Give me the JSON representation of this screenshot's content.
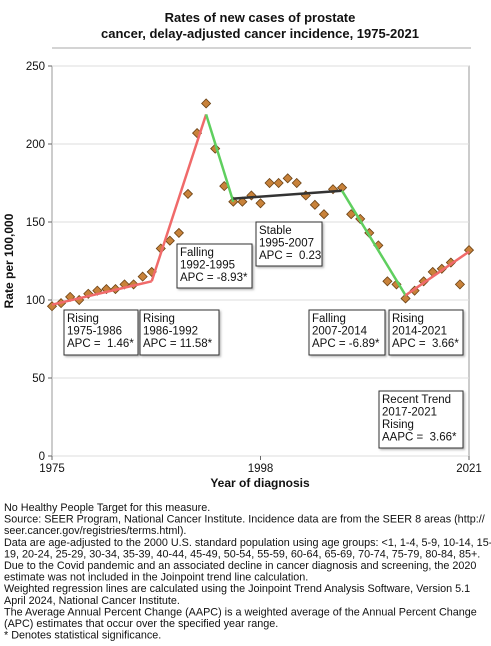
{
  "chart_data": {
    "type": "scatter",
    "title": [
      "Rates of new cases of prostate",
      "cancer, delay-adjusted cancer incidence, 1975-2021"
    ],
    "y_label": "Rate per 100,000",
    "x_label": "Year of diagnosis",
    "xlim": [
      1975,
      2021
    ],
    "xticks": [
      1975,
      1998,
      2021
    ],
    "ylim": [
      0,
      250
    ],
    "yticks": [
      0,
      50,
      100,
      150,
      200,
      250
    ],
    "marker_color": "#c8823a",
    "x": [
      1975,
      1976,
      1977,
      1978,
      1979,
      1980,
      1981,
      1982,
      1983,
      1984,
      1985,
      1986,
      1987,
      1988,
      1989,
      1990,
      1991,
      1992,
      1993,
      1994,
      1995,
      1996,
      1997,
      1998,
      1999,
      2000,
      2001,
      2002,
      2003,
      2004,
      2005,
      2006,
      2007,
      2008,
      2009,
      2010,
      2011,
      2012,
      2013,
      2014,
      2015,
      2016,
      2017,
      2018,
      2019,
      2020,
      2021
    ],
    "values": [
      96,
      98,
      102,
      100,
      104,
      106,
      107,
      107,
      110,
      110,
      115,
      118,
      133,
      138,
      143,
      168,
      207,
      226,
      197,
      173,
      163,
      163,
      167,
      162,
      175,
      175,
      178,
      175,
      167,
      161,
      155,
      171,
      172,
      155,
      152,
      143,
      135,
      112,
      110,
      101,
      106,
      112,
      118,
      120,
      124,
      110,
      132
    ],
    "trend_lines": [
      {
        "x": [
          1975,
          1986
        ],
        "values": [
          97,
          112
        ],
        "color": "#f06a6a"
      },
      {
        "x": [
          1986,
          1992
        ],
        "values": [
          112,
          219
        ],
        "color": "#f06a6a"
      },
      {
        "x": [
          1992,
          1995
        ],
        "values": [
          219,
          163
        ],
        "color": "#5fcf5f"
      },
      {
        "x": [
          1995,
          2007
        ],
        "values": [
          165,
          170
        ],
        "color": "#333333"
      },
      {
        "x": [
          2007,
          2014
        ],
        "values": [
          170,
          103
        ],
        "color": "#5fcf5f"
      },
      {
        "x": [
          2014,
          2021
        ],
        "values": [
          103,
          131
        ],
        "color": "#f06a6a"
      }
    ],
    "annotations": [
      {
        "lines": [
          "Rising",
          "1975-1986",
          "APC =  1.46*"
        ]
      },
      {
        "lines": [
          "Rising",
          "1986-1992",
          "APC = 11.58*"
        ]
      },
      {
        "lines": [
          "Falling",
          "1992-1995",
          "APC = -8.93*"
        ]
      },
      {
        "lines": [
          "Stable",
          "1995-2007",
          "APC =  0.23"
        ]
      },
      {
        "lines": [
          "Falling",
          "2007-2014",
          "APC = -6.89*"
        ]
      },
      {
        "lines": [
          "Rising",
          "2014-2021",
          "APC =  3.66*"
        ]
      },
      {
        "lines": [
          "Recent Trend",
          "2017-2021",
          "Rising",
          "AAPC =  3.66*"
        ]
      }
    ]
  },
  "footnotes": [
    "No Healthy People Target for this measure.",
    "Source: SEER Program, National Cancer Institute. Incidence data are from the SEER 8 areas (http://",
    "seer.cancer.gov/registries/terms.html).",
    "Data are age-adjusted to the 2000 U.S. standard population using age groups: <1, 1-4, 5-9, 10-14, 15-",
    "19, 20-24, 25-29, 30-34, 35-39, 40-44, 45-49, 50-54, 55-59, 60-64, 65-69, 70-74, 75-79, 80-84, 85+.",
    "Due to the Covid pandemic and an associated decline in cancer diagnosis and screening, the 2020",
    "estimate was not included in the Joinpoint trend line calculation.",
    "Weighted regression lines are calculated using the Joinpoint Trend Analysis Software, Version 5.1",
    "April 2024, National Cancer Institute.",
    "The Average Annual Percent Change (AAPC) is a weighted average of the Annual Percent Change",
    "(APC) estimates that occur over the specified year range.",
    "* Denotes statistical significance."
  ]
}
